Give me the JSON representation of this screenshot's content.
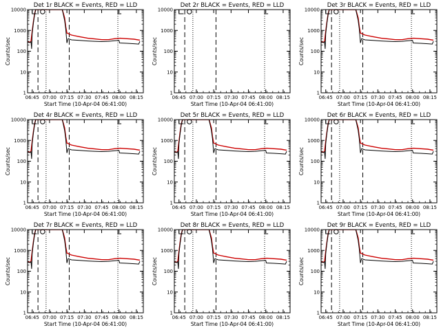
{
  "chart_data": [
    {
      "type": "line",
      "title": "Det 1r BLACK = Events, RED = LLD",
      "profile": 0
    },
    {
      "type": "line",
      "title": "Det 2r BLACK = Events, RED = LLD",
      "profile": 1
    },
    {
      "type": "line",
      "title": "Det 3r BLACK = Events, RED = LLD",
      "profile": 0
    },
    {
      "type": "line",
      "title": "Det 4r BLACK = Events, RED = LLD",
      "profile": 0
    },
    {
      "type": "line",
      "title": "Det 5r BLACK = Events, RED = LLD",
      "profile": 0
    },
    {
      "type": "line",
      "title": "Det 6r BLACK = Events, RED = LLD",
      "profile": 0
    },
    {
      "type": "line",
      "title": "Det 7r BLACK = Events, RED = LLD",
      "profile": 0
    },
    {
      "type": "line",
      "title": "Det 8r BLACK = Events, RED = LLD",
      "profile": 0
    },
    {
      "type": "line",
      "title": "Det 9r BLACK = Events, RED = LLD",
      "profile": 0
    }
  ],
  "shared": {
    "xlabel": "Start Time (10-Apr-04 06:41:00)",
    "ylabel": "Counts/sec",
    "x_ticks": [
      "06:45",
      "07:00",
      "07:15",
      "07:30",
      "07:45",
      "08:00",
      "08:15"
    ],
    "x_tick_minutes": [
      4,
      19,
      34,
      49,
      64,
      79,
      94
    ],
    "x_range_minutes": [
      0,
      100
    ],
    "y_scale": "log",
    "y_range": [
      1,
      10000
    ],
    "y_ticks": [
      "1",
      "10",
      "100",
      "1000",
      "10000"
    ],
    "y_tick_values": [
      1,
      10,
      100,
      1000,
      10000
    ],
    "dashed_markers_minutes": [
      9,
      36
    ],
    "dotted_markers_minutes": [
      16,
      78
    ],
    "series_names": [
      "Events",
      "LLD"
    ],
    "colors": {
      "events": "#000000",
      "lld": "#cc0000",
      "axes": "#000000"
    },
    "profiles": [
      {
        "lld": [
          [
            0,
            280
          ],
          [
            2,
            270
          ],
          [
            3,
            300
          ],
          [
            4,
            900
          ],
          [
            5,
            2500
          ],
          [
            6,
            6000
          ],
          [
            7,
            10000
          ],
          [
            30,
            10000
          ],
          [
            32,
            4000
          ],
          [
            33,
            1500
          ],
          [
            34,
            750
          ],
          [
            38,
            600
          ],
          [
            45,
            500
          ],
          [
            52,
            420
          ],
          [
            58,
            390
          ],
          [
            64,
            360
          ],
          [
            70,
            360
          ],
          [
            75,
            400
          ],
          [
            80,
            420
          ],
          [
            86,
            400
          ],
          [
            92,
            380
          ],
          [
            97,
            340
          ]
        ],
        "events": [
          [
            0,
            270
          ],
          [
            2,
            260
          ],
          [
            3,
            285
          ],
          [
            3.5,
            130
          ],
          [
            4,
            700
          ],
          [
            5,
            2200
          ],
          [
            6,
            5500
          ],
          [
            7,
            10000
          ],
          [
            30,
            10000
          ],
          [
            32,
            3000
          ],
          [
            33,
            1200
          ],
          [
            34,
            250
          ],
          [
            35,
            400
          ],
          [
            38,
            350
          ],
          [
            45,
            330
          ],
          [
            52,
            310
          ],
          [
            58,
            300
          ],
          [
            64,
            290
          ],
          [
            70,
            300
          ],
          [
            75,
            320
          ],
          [
            79,
            330
          ],
          [
            79.5,
            250
          ],
          [
            86,
            240
          ],
          [
            92,
            230
          ],
          [
            96,
            220
          ],
          [
            97,
            300
          ]
        ]
      },
      {
        "lld": [],
        "events": []
      }
    ]
  }
}
